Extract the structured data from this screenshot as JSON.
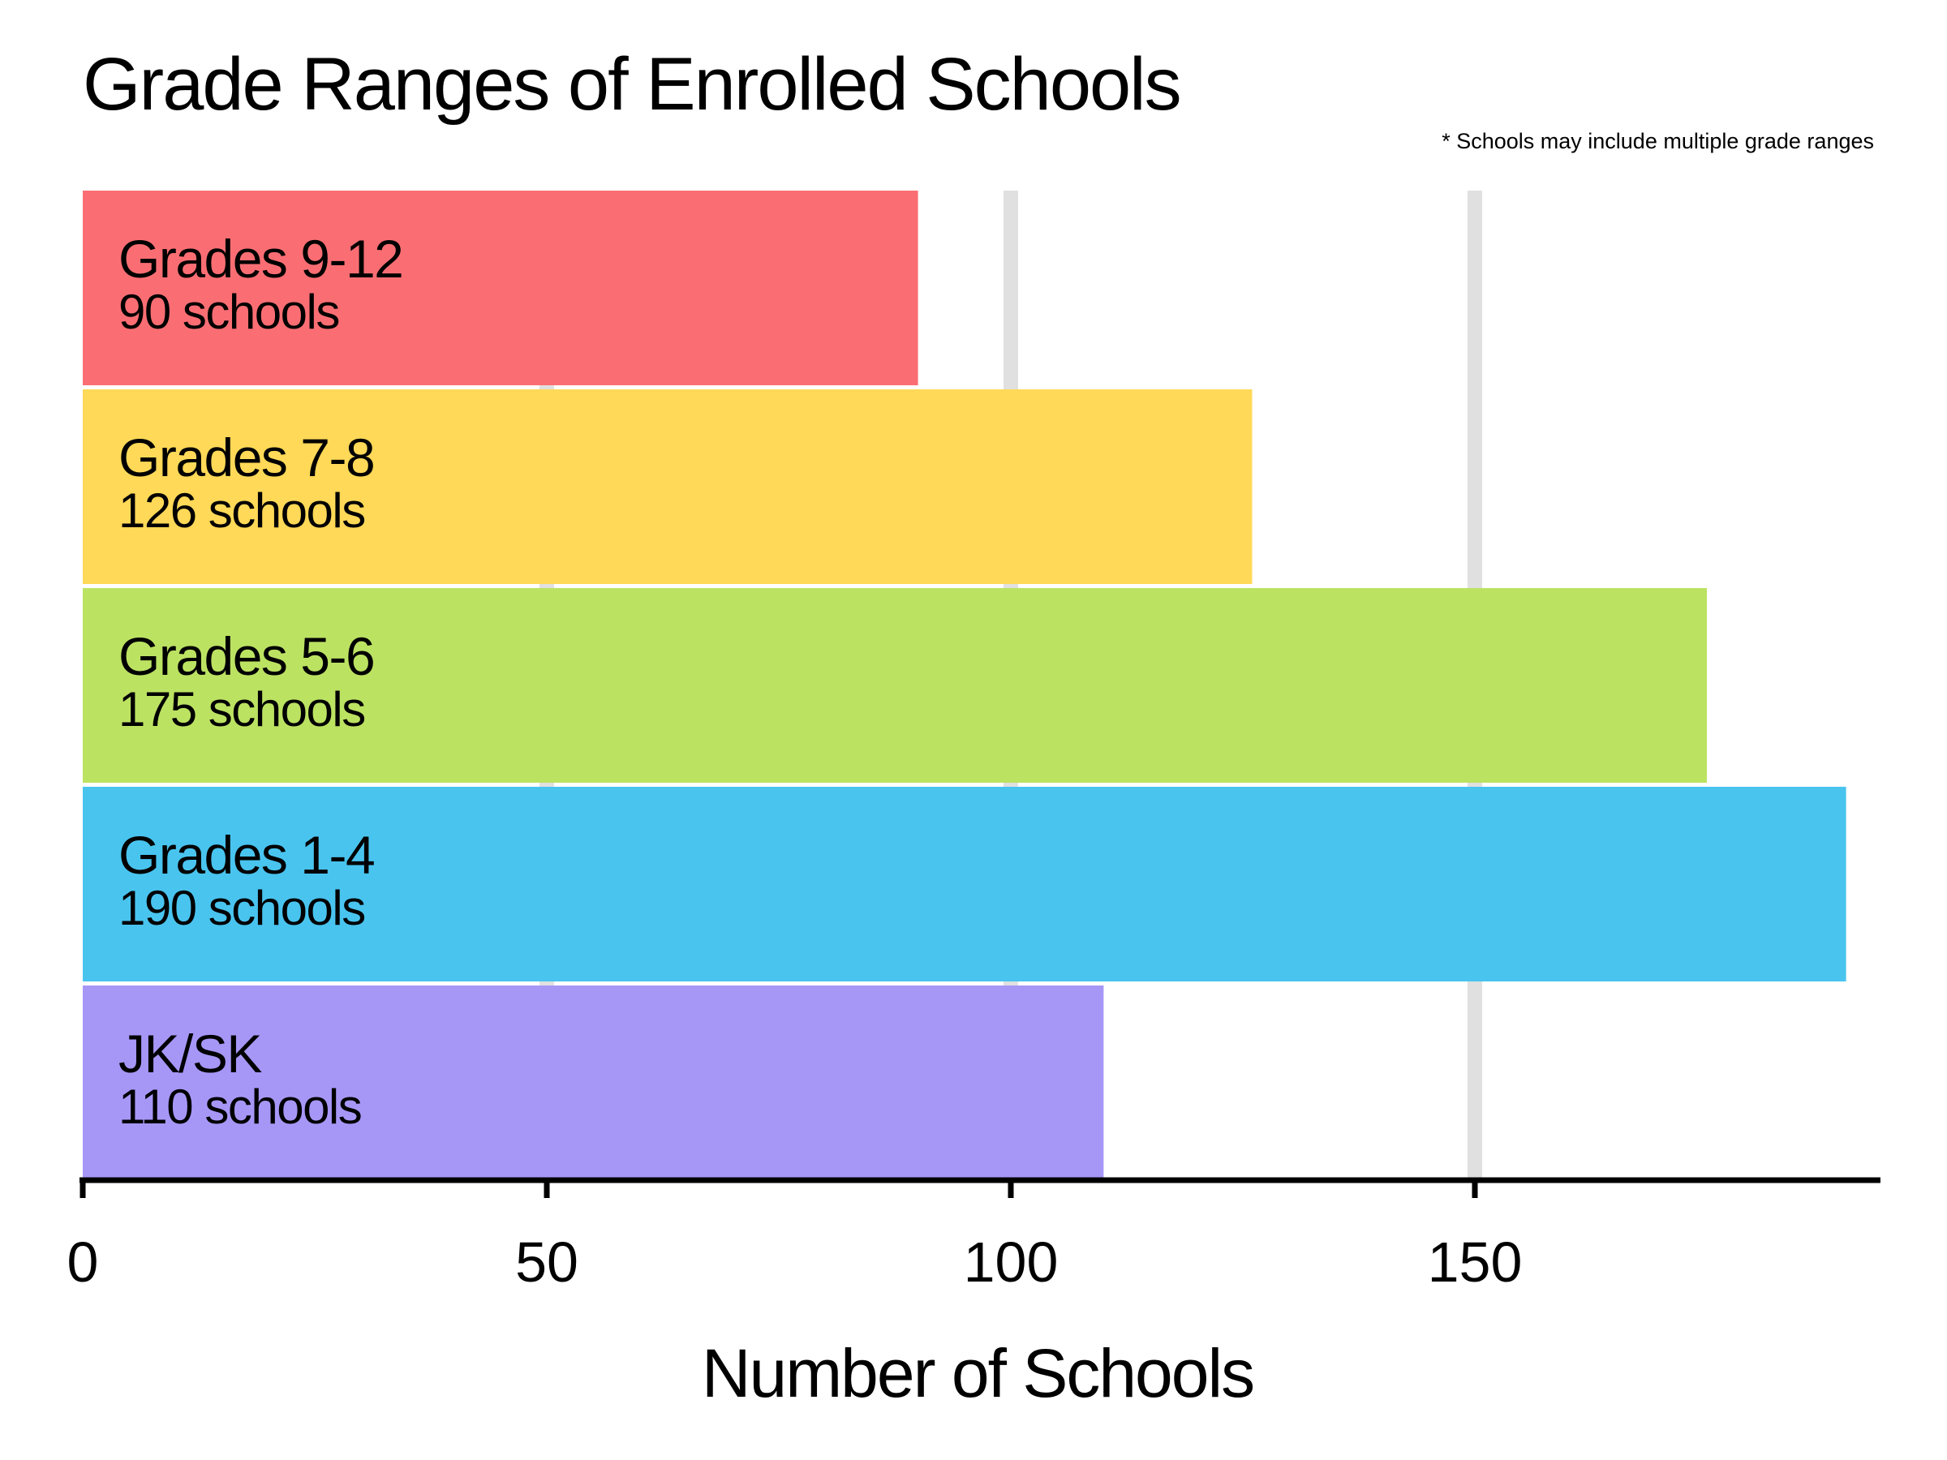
{
  "chart_data": {
    "type": "bar",
    "orientation": "horizontal",
    "title": "Grade Ranges of Enrolled Schools",
    "footnote": "* Schools may include multiple grade ranges",
    "xlabel": "Number of Schools",
    "ylabel": "",
    "xlim": [
      0,
      193
    ],
    "xticks": [
      0,
      50,
      100,
      150
    ],
    "grid": "vertical",
    "value_suffix": "schools",
    "bars": [
      {
        "label": "Grades 9-12",
        "value": 90,
        "value_label": "90 schools",
        "color": "#fa6e73"
      },
      {
        "label": "Grades 7-8",
        "value": 126,
        "value_label": "126 schools",
        "color": "#ffd957"
      },
      {
        "label": "Grades 5-6",
        "value": 175,
        "value_label": "175 schools",
        "color": "#bce262"
      },
      {
        "label": "Grades 1-4",
        "value": 190,
        "value_label": "190 schools",
        "color": "#49c4ef"
      },
      {
        "label": "JK/SK",
        "value": 110,
        "value_label": "110 schools",
        "color": "#a697f7"
      }
    ],
    "gridline_color": "#e0e0e0",
    "axis_color": "#000000"
  }
}
